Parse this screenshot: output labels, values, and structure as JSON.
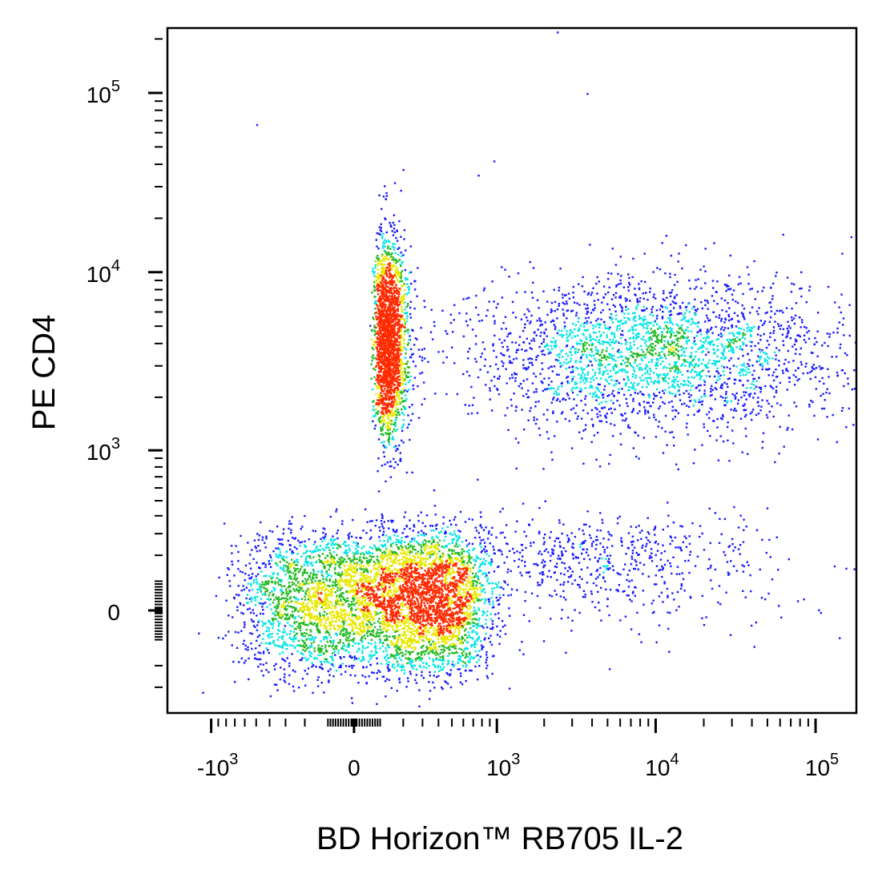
{
  "chart_data": {
    "type": "scatter",
    "subtype": "flow-cytometry-density-dot-plot",
    "title": "",
    "xlabel": "BD Horizon™ RB705  IL-2",
    "ylabel": "PE  CD4",
    "x_scale": "biexponential",
    "y_scale": "biexponential",
    "xlim": [
      -1900,
      180000
    ],
    "ylim": [
      -450,
      230000
    ],
    "x_ticks": [
      {
        "value": -1000,
        "base": "-10",
        "exp": "3"
      },
      {
        "value": 0,
        "base": "0",
        "exp": ""
      },
      {
        "value": 1000,
        "base": "10",
        "exp": "3"
      },
      {
        "value": 10000,
        "base": "10",
        "exp": "4"
      },
      {
        "value": 100000,
        "base": "10",
        "exp": "5"
      }
    ],
    "y_ticks": [
      {
        "value": 0,
        "base": "0",
        "exp": ""
      },
      {
        "value": 1000,
        "base": "10",
        "exp": "3"
      },
      {
        "value": 10000,
        "base": "10",
        "exp": "4"
      },
      {
        "value": 100000,
        "base": "10",
        "exp": "5"
      }
    ],
    "grid": false,
    "density_colors": [
      "#1a1aff",
      "#00e5e5",
      "#22bb22",
      "#e8e800",
      "#ff2a00"
    ],
    "populations": [
      {
        "x_center": 150,
        "y_center": 40,
        "x_spread": 330,
        "y_spread": 130,
        "approx_events": 5200,
        "density": "very high"
      },
      {
        "x_center": 130,
        "y_center": 4200,
        "x_spread_log10": 0.12,
        "y_spread_log10": 0.27,
        "approx_events": 2100,
        "density": "medium"
      },
      {
        "x_center": 9000,
        "y_center": 3500,
        "x_spread_log10": 0.6,
        "y_spread_log10": 0.22,
        "approx_events": 2600,
        "density": "low"
      },
      {
        "x_center": 5000,
        "y_center": 170,
        "x_spread_log10": 0.55,
        "y_spread": 120,
        "approx_events": 650,
        "density": "very low"
      }
    ],
    "outliers": [
      {
        "x": 2400,
        "y": 220000
      },
      {
        "x": 3700,
        "y": 100000
      },
      {
        "x": -500,
        "y": 67000
      },
      {
        "x": 950,
        "y": 42000
      },
      {
        "x": 750,
        "y": 35000
      }
    ]
  }
}
